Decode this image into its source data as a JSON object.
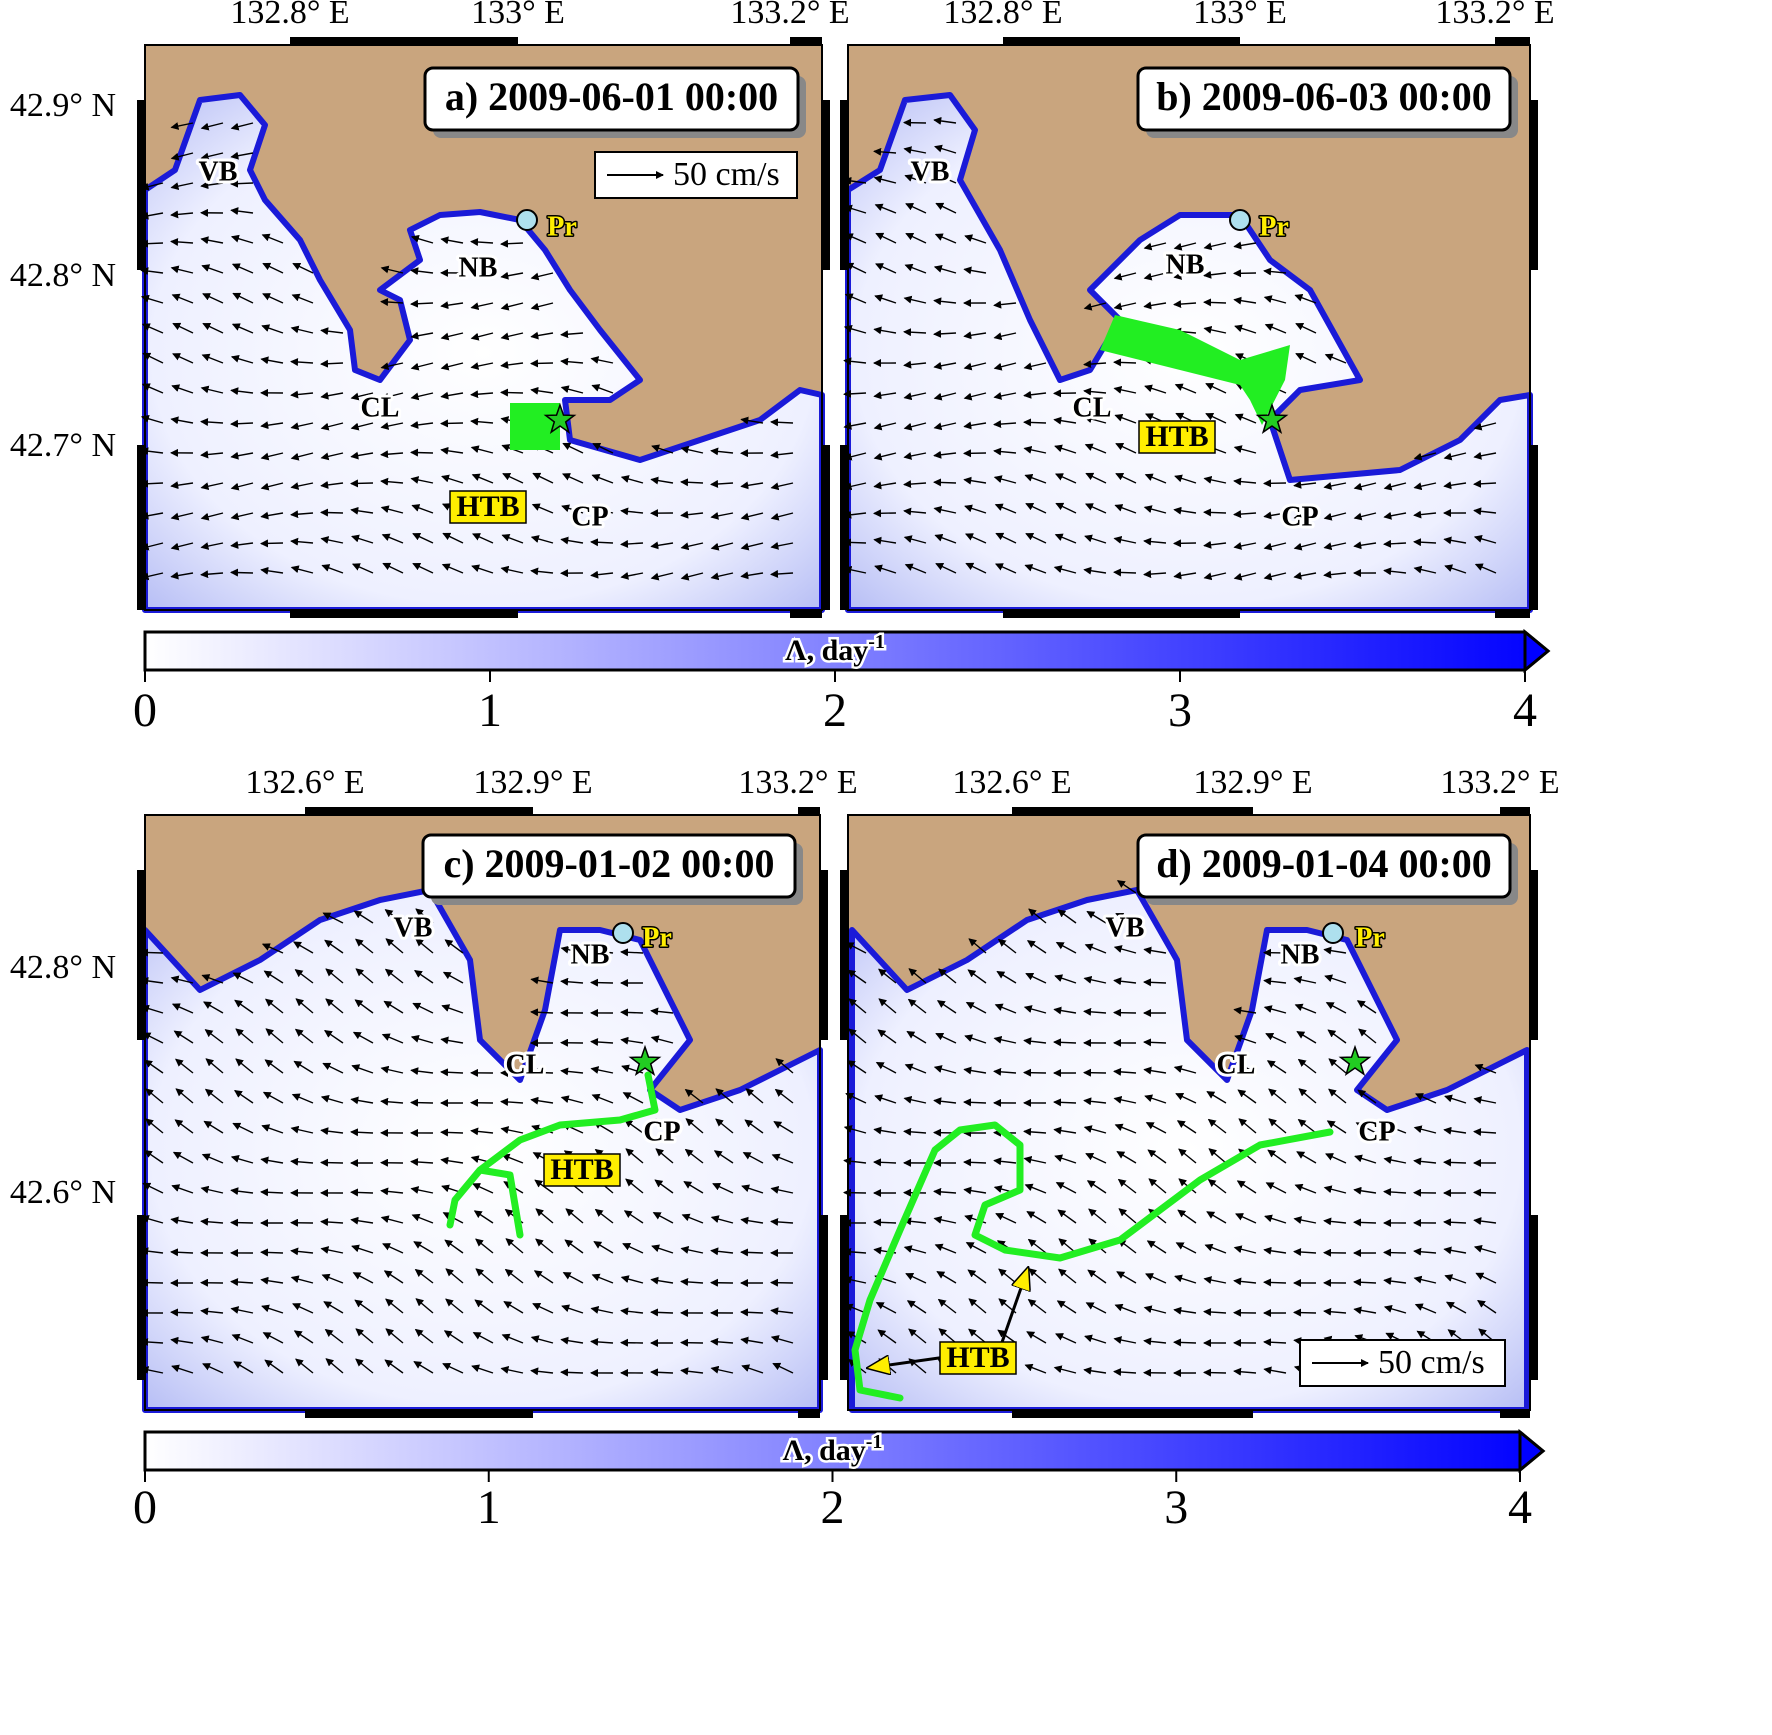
{
  "panels": [
    {
      "title": "a) 2009-06-01 00:00",
      "lon_labels": [
        "132.8° E",
        "133° E",
        "133.2° E"
      ],
      "lat_labels": [
        "42.9° N",
        "42.8° N",
        "42.7° N"
      ],
      "places": [
        "VB",
        "NB",
        "Pr",
        "CL",
        "HTB",
        "CP"
      ],
      "scale_label": "50 cm/s"
    },
    {
      "title": "b) 2009-06-03 00:00",
      "lon_labels": [
        "132.8° E",
        "133° E",
        "133.2° E"
      ],
      "places": [
        "VB",
        "NB",
        "Pr",
        "CL",
        "HTB",
        "CP"
      ]
    },
    {
      "title": "c) 2009-01-02 00:00",
      "lon_labels": [
        "132.6° E",
        "132.9° E",
        "133.2° E"
      ],
      "lat_labels": [
        "42.8° N",
        "42.6° N"
      ],
      "places": [
        "VB",
        "NB",
        "Pr",
        "CL",
        "HTB",
        "CP"
      ]
    },
    {
      "title": "d) 2009-01-04 00:00",
      "lon_labels": [
        "132.6° E",
        "132.9° E",
        "133.2° E"
      ],
      "places": [
        "VB",
        "NB",
        "Pr",
        "CL",
        "HTB",
        "CP"
      ],
      "scale_label": "50 cm/s"
    }
  ],
  "colorbars": [
    {
      "label": "Λ, day",
      "label_sup": "-1",
      "range": [
        0,
        4
      ],
      "ticks": [
        0,
        1,
        2,
        3,
        4
      ]
    },
    {
      "label": "Λ, day",
      "label_sup": "-1",
      "range": [
        0,
        4
      ],
      "ticks": [
        0,
        1,
        2,
        3,
        4
      ]
    }
  ]
}
